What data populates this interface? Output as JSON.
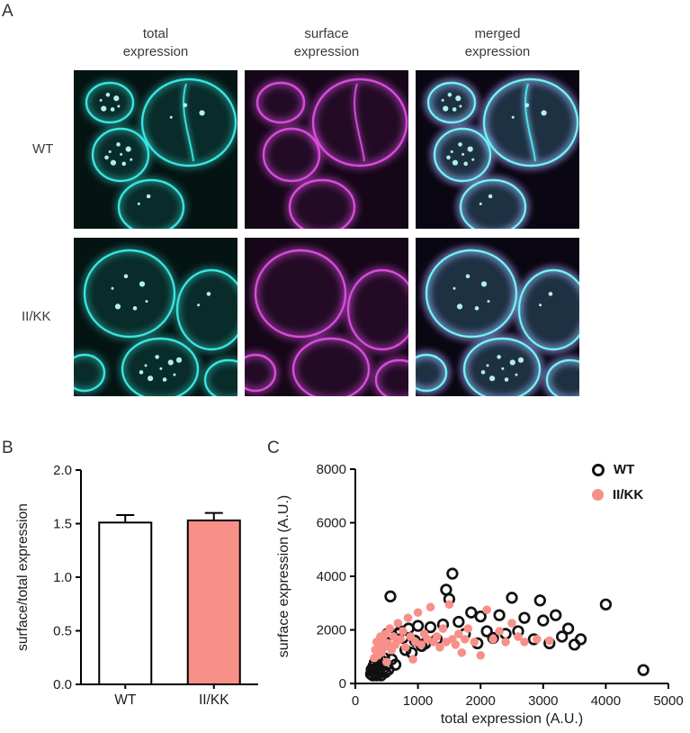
{
  "panel_labels": {
    "a": "A",
    "b": "B",
    "c": "C"
  },
  "panel_a": {
    "column_headers": [
      "total\nexpression",
      "surface\nexpression",
      "merged\nexpression"
    ],
    "row_labels": [
      "WT",
      "II/KK"
    ],
    "channel_colors": {
      "total": "#3AEDE6",
      "surface": "#DE4FE3",
      "puncta": "#B9FAF5"
    }
  },
  "colors": {
    "salmon": "#F8908A",
    "marker_black": "#111111"
  },
  "chart_data": [
    {
      "type": "bar",
      "title": "",
      "categories": [
        "WT",
        "II/KK"
      ],
      "values": [
        1.51,
        1.53
      ],
      "errors": [
        0.07,
        0.07
      ],
      "bar_colors": [
        "#FFFFFF",
        "#F8908A"
      ],
      "xlabel": "",
      "ylabel": "surface/total expression",
      "ylim": [
        0,
        2.0
      ],
      "yticks": [
        "0.0",
        "0.5",
        "1.0",
        "1.5",
        "2.0"
      ],
      "grid": false
    },
    {
      "type": "scatter",
      "title": "",
      "xlabel": "total expression (A.U.)",
      "ylabel": "surface expression (A.U.)",
      "xlim": [
        0,
        5000
      ],
      "ylim": [
        0,
        8000
      ],
      "xticks": [
        "0",
        "1000",
        "2000",
        "3000",
        "4000",
        "5000"
      ],
      "yticks": [
        "0",
        "2000",
        "4000",
        "6000",
        "8000"
      ],
      "grid": false,
      "legend_position": "top-right",
      "series": [
        {
          "name": "WT",
          "marker": "open",
          "color": "#111111",
          "points": [
            [
              250,
              350
            ],
            [
              260,
              520
            ],
            [
              280,
              300
            ],
            [
              290,
              650
            ],
            [
              300,
              420
            ],
            [
              310,
              780
            ],
            [
              320,
              350
            ],
            [
              330,
              560
            ],
            [
              340,
              300
            ],
            [
              350,
              900
            ],
            [
              360,
              480
            ],
            [
              370,
              700
            ],
            [
              380,
              380
            ],
            [
              400,
              620
            ],
            [
              410,
              300
            ],
            [
              420,
              850
            ],
            [
              440,
              500
            ],
            [
              460,
              950
            ],
            [
              480,
              420
            ],
            [
              500,
              700
            ],
            [
              510,
              1850
            ],
            [
              530,
              520
            ],
            [
              560,
              3250
            ],
            [
              580,
              900
            ],
            [
              600,
              1500
            ],
            [
              640,
              700
            ],
            [
              680,
              1850
            ],
            [
              720,
              1950
            ],
            [
              760,
              1700
            ],
            [
              800,
              1250
            ],
            [
              850,
              2050
            ],
            [
              900,
              1150
            ],
            [
              950,
              1600
            ],
            [
              1000,
              2150
            ],
            [
              1060,
              1400
            ],
            [
              1120,
              1500
            ],
            [
              1200,
              2100
            ],
            [
              1300,
              1650
            ],
            [
              1400,
              2200
            ],
            [
              1450,
              3500
            ],
            [
              1500,
              3150
            ],
            [
              1550,
              4100
            ],
            [
              1650,
              2300
            ],
            [
              1750,
              1850
            ],
            [
              1850,
              2650
            ],
            [
              1950,
              1500
            ],
            [
              2000,
              2500
            ],
            [
              2100,
              1950
            ],
            [
              2200,
              1700
            ],
            [
              2300,
              2550
            ],
            [
              2400,
              1850
            ],
            [
              2500,
              3200
            ],
            [
              2600,
              1950
            ],
            [
              2700,
              2450
            ],
            [
              2850,
              1650
            ],
            [
              2950,
              3100
            ],
            [
              3000,
              2350
            ],
            [
              3100,
              1500
            ],
            [
              3200,
              2550
            ],
            [
              3300,
              1750
            ],
            [
              3400,
              2050
            ],
            [
              3500,
              1450
            ],
            [
              3600,
              1650
            ],
            [
              4000,
              2950
            ],
            [
              4600,
              500
            ]
          ]
        },
        {
          "name": "II/KK",
          "marker": "filled",
          "color": "#F8908A",
          "points": [
            [
              300,
              950
            ],
            [
              320,
              1250
            ],
            [
              340,
              1550
            ],
            [
              360,
              1050
            ],
            [
              380,
              1450
            ],
            [
              400,
              1750
            ],
            [
              420,
              1150
            ],
            [
              440,
              1650
            ],
            [
              460,
              1350
            ],
            [
              480,
              1850
            ],
            [
              500,
              800
            ],
            [
              520,
              1500
            ],
            [
              550,
              2050
            ],
            [
              580,
              1250
            ],
            [
              610,
              1750
            ],
            [
              640,
              1450
            ],
            [
              680,
              2250
            ],
            [
              720,
              1650
            ],
            [
              760,
              1950
            ],
            [
              800,
              1350
            ],
            [
              840,
              2450
            ],
            [
              880,
              1750
            ],
            [
              920,
              900
            ],
            [
              960,
              1550
            ],
            [
              1000,
              2650
            ],
            [
              1050,
              1450
            ],
            [
              1100,
              1850
            ],
            [
              1150,
              1650
            ],
            [
              1200,
              2850
            ],
            [
              1250,
              1550
            ],
            [
              1300,
              1750
            ],
            [
              1350,
              1350
            ],
            [
              1400,
              2050
            ],
            [
              1450,
              1550
            ],
            [
              1500,
              2950
            ],
            [
              1550,
              1650
            ],
            [
              1600,
              1450
            ],
            [
              1650,
              1850
            ],
            [
              1700,
              1150
            ],
            [
              1750,
              1650
            ],
            [
              1800,
              2050
            ],
            [
              1900,
              1550
            ],
            [
              2000,
              1050
            ],
            [
              2100,
              2750
            ],
            [
              2200,
              1650
            ],
            [
              2300,
              1950
            ],
            [
              2400,
              1550
            ],
            [
              2500,
              2250
            ],
            [
              2600,
              1750
            ],
            [
              2700,
              1550
            ],
            [
              2900,
              1650
            ],
            [
              3100,
              1600
            ]
          ]
        }
      ]
    }
  ]
}
